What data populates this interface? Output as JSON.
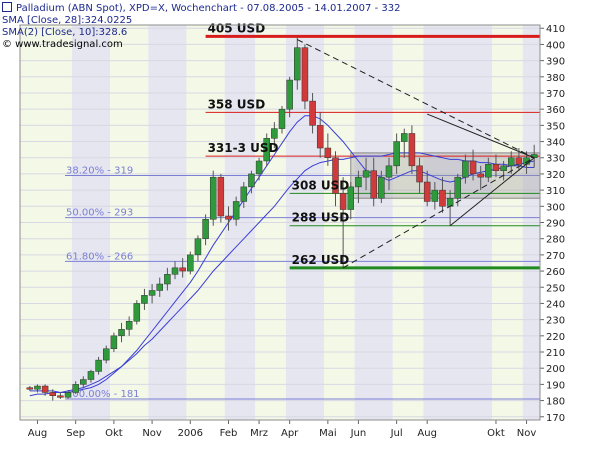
{
  "legend": {
    "title": "Palladium (ABN Spot), XPD=X, Wochenchart - 07.08.2005 - 14.01.2007 - 332",
    "sma28": "SMA [Close, 28]:324.0225",
    "sma10": "SMA(2) [Close, 10]:328.6",
    "copyright": "© www.tradesignal.com"
  },
  "colors": {
    "up_candle": "#2e9a3c",
    "down_candle": "#d03a3a",
    "sma": "#3a3fd8",
    "support_green": "#1f8a1f",
    "resistance_red": "#d81c1c",
    "fib_line": "#7b7fd6",
    "band_light": "#f4f8e6",
    "band_dark": "#e6e6f0"
  },
  "chart_data": {
    "type": "candlestick",
    "title": "Palladium (ABN Spot), XPD=X, Wochenchart - 07.08.2005 - 14.01.2007 - 332",
    "y_axis": {
      "range": [
        168,
        412
      ],
      "ticks": [
        170,
        180,
        190,
        200,
        210,
        220,
        230,
        240,
        250,
        260,
        270,
        280,
        290,
        300,
        310,
        320,
        330,
        340,
        350,
        360,
        370,
        380,
        390,
        400,
        410
      ],
      "position": "right"
    },
    "x_axis": {
      "tick_labels": [
        "Aug",
        "Sep",
        "Okt",
        "Nov",
        "2006",
        "Feb",
        "Mrz",
        "Apr",
        "Mai",
        "Jun",
        "Jul",
        "Aug",
        "Okt",
        "Nov"
      ],
      "tick_index": [
        1,
        6,
        11,
        16,
        21,
        26,
        30,
        34,
        39,
        43,
        48,
        52,
        61,
        65
      ]
    },
    "grid": true,
    "candles": [
      [
        188,
        189,
        186,
        187
      ],
      [
        187,
        190,
        185,
        189
      ],
      [
        189,
        190,
        183,
        185
      ],
      [
        185,
        187,
        180,
        183
      ],
      [
        183,
        185,
        181,
        182
      ],
      [
        182,
        186,
        181,
        185
      ],
      [
        185,
        192,
        184,
        190
      ],
      [
        190,
        195,
        188,
        193
      ],
      [
        193,
        199,
        191,
        198
      ],
      [
        198,
        207,
        196,
        205
      ],
      [
        205,
        214,
        203,
        212
      ],
      [
        212,
        222,
        210,
        220
      ],
      [
        220,
        228,
        216,
        224
      ],
      [
        224,
        232,
        220,
        229
      ],
      [
        229,
        242,
        227,
        240
      ],
      [
        240,
        249,
        236,
        245
      ],
      [
        245,
        252,
        240,
        248
      ],
      [
        248,
        256,
        244,
        252
      ],
      [
        252,
        262,
        248,
        258
      ],
      [
        258,
        266,
        255,
        262
      ],
      [
        262,
        268,
        256,
        260
      ],
      [
        260,
        272,
        258,
        270
      ],
      [
        270,
        282,
        266,
        280
      ],
      [
        280,
        295,
        276,
        292
      ],
      [
        292,
        322,
        288,
        318
      ],
      [
        318,
        320,
        290,
        294
      ],
      [
        294,
        300,
        285,
        292
      ],
      [
        292,
        306,
        288,
        303
      ],
      [
        303,
        315,
        299,
        312
      ],
      [
        312,
        322,
        308,
        320
      ],
      [
        320,
        330,
        316,
        328
      ],
      [
        328,
        345,
        325,
        342
      ],
      [
        342,
        352,
        336,
        348
      ],
      [
        348,
        362,
        345,
        360
      ],
      [
        360,
        380,
        355,
        378
      ],
      [
        378,
        405,
        372,
        398
      ],
      [
        398,
        400,
        360,
        365
      ],
      [
        365,
        370,
        345,
        350
      ],
      [
        350,
        358,
        330,
        336
      ],
      [
        336,
        345,
        325,
        330
      ],
      [
        330,
        334,
        300,
        308
      ],
      [
        308,
        318,
        262,
        298
      ],
      [
        298,
        315,
        292,
        312
      ],
      [
        312,
        322,
        302,
        318
      ],
      [
        318,
        330,
        310,
        322
      ],
      [
        322,
        330,
        300,
        305
      ],
      [
        305,
        322,
        302,
        318
      ],
      [
        318,
        330,
        310,
        325
      ],
      [
        325,
        345,
        320,
        340
      ],
      [
        340,
        348,
        330,
        345
      ],
      [
        345,
        350,
        320,
        325
      ],
      [
        325,
        330,
        308,
        315
      ],
      [
        315,
        322,
        300,
        303
      ],
      [
        303,
        315,
        298,
        310
      ],
      [
        310,
        318,
        296,
        300
      ],
      [
        300,
        310,
        288,
        305
      ],
      [
        305,
        320,
        300,
        318
      ],
      [
        318,
        332,
        314,
        328
      ],
      [
        328,
        335,
        316,
        320
      ],
      [
        320,
        325,
        310,
        318
      ],
      [
        318,
        330,
        315,
        326
      ],
      [
        326,
        332,
        318,
        322
      ],
      [
        322,
        328,
        316,
        325
      ],
      [
        325,
        334,
        320,
        330
      ],
      [
        330,
        336,
        322,
        326
      ],
      [
        326,
        334,
        320,
        330
      ],
      [
        330,
        338,
        324,
        332
      ]
    ],
    "sma28": [
      183,
      184,
      184,
      185,
      185,
      186,
      187,
      188,
      190,
      192,
      195,
      198,
      201,
      205,
      209,
      214,
      218,
      223,
      228,
      233,
      238,
      243,
      248,
      254,
      260,
      265,
      270,
      275,
      280,
      285,
      290,
      295,
      300,
      306,
      312,
      317,
      322,
      325,
      327,
      328,
      329,
      329,
      330,
      331,
      331,
      331,
      331,
      332,
      333,
      333,
      333,
      333,
      332,
      331,
      330,
      329,
      329,
      328,
      328,
      327,
      327,
      326,
      326,
      325,
      325,
      324,
      324
    ],
    "sma10": [
      186,
      186,
      186,
      186,
      185,
      185,
      186,
      187,
      188,
      190,
      193,
      197,
      201,
      206,
      211,
      217,
      223,
      229,
      235,
      241,
      247,
      253,
      260,
      268,
      276,
      283,
      290,
      297,
      304,
      311,
      318,
      325,
      332,
      339,
      346,
      352,
      356,
      356,
      354,
      350,
      345,
      340,
      334,
      328,
      322,
      320,
      318,
      316,
      318,
      320,
      322,
      322,
      320,
      318,
      316,
      315,
      316,
      318,
      320,
      321,
      322,
      323,
      324,
      325,
      326,
      327,
      328
    ],
    "horizontal_levels": [
      {
        "value": 405,
        "label": "405 USD",
        "color": "red",
        "style": "thick"
      },
      {
        "value": 358,
        "label": "358 USD",
        "color": "red",
        "style": "thin"
      },
      {
        "value": 331,
        "label": "331-3 USD",
        "color": "red",
        "style": "thin"
      },
      {
        "value": 308,
        "label": "308 USD",
        "color": "green",
        "style": "thin"
      },
      {
        "value": 288,
        "label": "288 USD",
        "color": "green",
        "style": "thin"
      },
      {
        "value": 262,
        "label": "262 USD",
        "color": "green",
        "style": "thick"
      }
    ],
    "fibonacci": [
      {
        "value": 319,
        "label": "38.20% - 319"
      },
      {
        "value": 293,
        "label": "50.00% - 293"
      },
      {
        "value": 266,
        "label": "61.80% - 266"
      },
      {
        "value": 181,
        "label": "100.00% - 181"
      }
    ],
    "consolidation_box": {
      "y_range": [
        305,
        333
      ]
    },
    "trendlines": [
      {
        "from": [
          35,
          403
        ],
        "to": [
          66,
          330
        ],
        "style": "dashed"
      },
      {
        "from": [
          41,
          262
        ],
        "to": [
          66,
          330
        ],
        "style": "dashed"
      },
      {
        "from": [
          52,
          357
        ],
        "to": [
          66,
          330
        ],
        "style": "solid"
      },
      {
        "from": [
          55,
          288
        ],
        "to": [
          66,
          330
        ],
        "style": "solid"
      }
    ]
  }
}
